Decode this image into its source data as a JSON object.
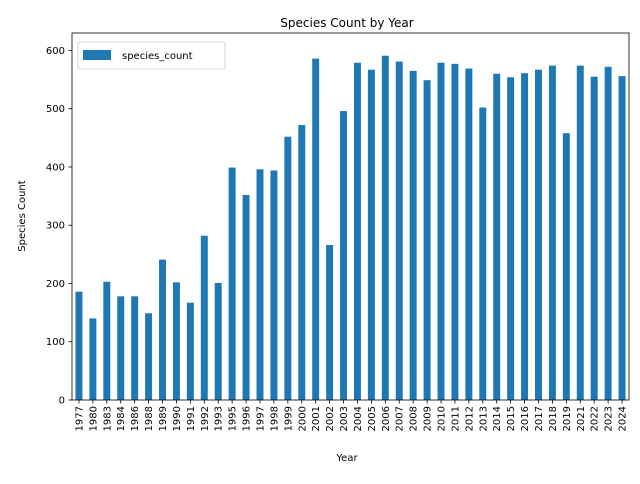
{
  "chart_data": {
    "type": "bar",
    "title": "Species Count by Year",
    "xlabel": "Year",
    "ylabel": "Species Count",
    "ylim": [
      0,
      630
    ],
    "yticks": [
      0,
      100,
      200,
      300,
      400,
      500,
      600
    ],
    "grid": false,
    "legend": {
      "position": "top-left",
      "entries": [
        "species_count"
      ]
    },
    "bar_color": "#1f77b4",
    "categories": [
      "1977",
      "1980",
      "1983",
      "1984",
      "1986",
      "1988",
      "1989",
      "1990",
      "1991",
      "1992",
      "1993",
      "1995",
      "1996",
      "1997",
      "1998",
      "1999",
      "2000",
      "2001",
      "2002",
      "2003",
      "2004",
      "2005",
      "2006",
      "2007",
      "2008",
      "2009",
      "2010",
      "2011",
      "2012",
      "2013",
      "2014",
      "2015",
      "2016",
      "2017",
      "2018",
      "2019",
      "2021",
      "2022",
      "2023",
      "2024"
    ],
    "series": [
      {
        "name": "species_count",
        "values": [
          186,
          140,
          203,
          178,
          178,
          149,
          241,
          202,
          167,
          282,
          201,
          399,
          352,
          396,
          394,
          452,
          472,
          586,
          266,
          496,
          579,
          567,
          591,
          581,
          565,
          549,
          579,
          577,
          569,
          502,
          560,
          554,
          561,
          567,
          574,
          458,
          574,
          555,
          572,
          556
        ]
      }
    ]
  }
}
